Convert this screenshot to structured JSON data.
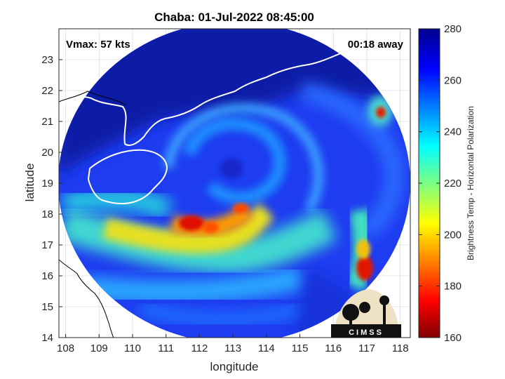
{
  "chart_data": {
    "type": "heatmap",
    "title": "Chaba: 01-Jul-2022 08:45:00",
    "xlabel": "longitude",
    "ylabel": "latitude",
    "xlim": [
      107.8,
      118.3
    ],
    "ylim": [
      14,
      24
    ],
    "xticks": [
      108,
      109,
      110,
      111,
      112,
      113,
      114,
      115,
      116,
      117,
      118
    ],
    "yticks": [
      14,
      15,
      16,
      17,
      18,
      19,
      20,
      21,
      22,
      23
    ],
    "grid": true,
    "annotations": {
      "vmax": "Vmax: 57 kts",
      "away": "00:18 away"
    },
    "colorbar": {
      "label": "Brightness Temp - Horizontal Polarization",
      "range": [
        160,
        280
      ],
      "ticks": [
        160,
        180,
        200,
        220,
        240,
        260,
        280
      ],
      "colormap": "jet"
    },
    "swath": {
      "center_lon": 113.0,
      "center_lat": 18.9,
      "radius_deg": 5.3
    },
    "storm_center": {
      "lon": 112.8,
      "lat": 19.2
    },
    "features": [
      {
        "lon": 111.7,
        "lat": 17.7,
        "tb": 165
      },
      {
        "lon": 112.6,
        "lat": 17.8,
        "tb": 178
      },
      {
        "lon": 113.2,
        "lat": 18.2,
        "tb": 182
      },
      {
        "lon": 117.0,
        "lat": 16.3,
        "tb": 170
      },
      {
        "lon": 117.4,
        "lat": 21.3,
        "tb": 175
      }
    ],
    "logo_text": "CIMSS"
  }
}
